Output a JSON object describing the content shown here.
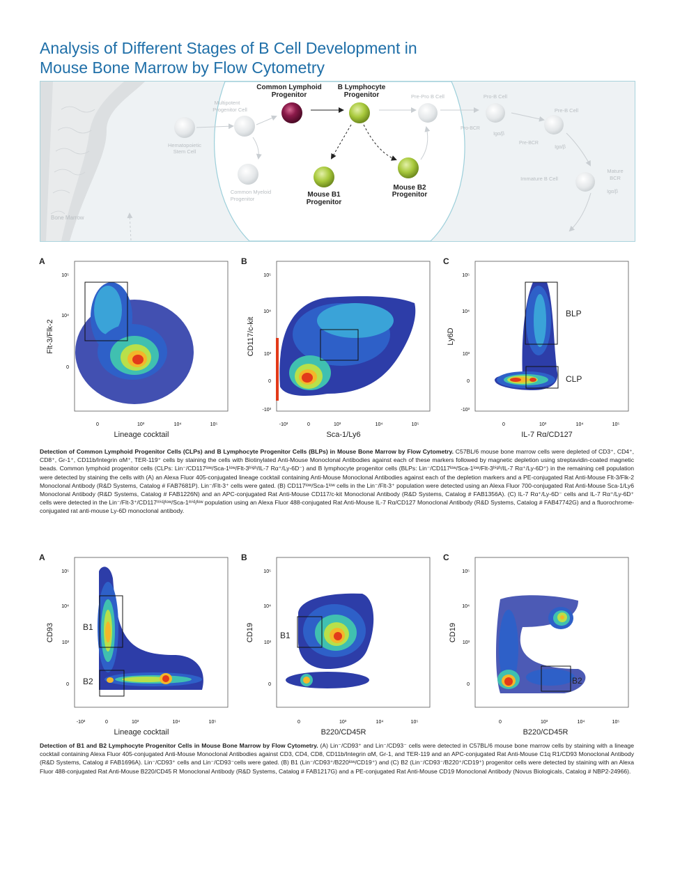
{
  "title": {
    "line1": "Analysis of Different Stages of B Cell Development in",
    "line2": "Mouse Bone Marrow by Flow Cytometry"
  },
  "diagram": {
    "bone_marrow": "Bone Marrow",
    "hsc": [
      "Hematopoietic",
      "Stem Cell"
    ],
    "mpp": [
      "Multipotent",
      "Progenitor Cell"
    ],
    "cmp": [
      "Common Myeloid",
      "Progenitor"
    ],
    "clp": [
      "Common Lymphoid",
      "Progenitor"
    ],
    "blp": [
      "B Lymphocyte",
      "Progenitor"
    ],
    "b1": [
      "Mouse B1",
      "Progenitor"
    ],
    "b2": [
      "Mouse B2",
      "Progenitor"
    ],
    "prepro": "Pre-Pro B Cell",
    "prob": "Pro-B Cell",
    "probcr": "Pro-BCR",
    "igab": "Igα/β",
    "preb": "Pre-B Cell",
    "prebcr": "Pre-BCR",
    "igab2": "Igα/β",
    "immature": "Immature B Cell",
    "mature": [
      "Mature",
      "BCR"
    ],
    "igab3": "Igα/β",
    "colors": {
      "clp": "#8b1a4a",
      "progenitor": "#a8c93c",
      "faded": "#e2e6e8"
    }
  },
  "panels_top": {
    "A": {
      "letter": "A",
      "xlabel": "Lineage cocktail",
      "ylabel": "Flt-3/Flk-2",
      "xticks": [
        "0",
        "10³",
        "10⁴",
        "10⁵"
      ],
      "yticks": [
        "10⁵",
        "10⁴",
        "0"
      ]
    },
    "B": {
      "letter": "B",
      "xlabel": "Sca-1/Ly6",
      "ylabel": "CD117/c-kit",
      "xticks": [
        "-10³",
        "0",
        "10³",
        "10⁴",
        "10⁵"
      ],
      "yticks": [
        "10⁵",
        "10⁴",
        "10³",
        "0",
        "-10³"
      ]
    },
    "C": {
      "letter": "C",
      "xlabel": "IL-7 Rα/CD127",
      "ylabel": "Ly6D",
      "xticks": [
        "0",
        "10³",
        "10⁴",
        "10⁵"
      ],
      "yticks": [
        "10⁵",
        "10⁴",
        "10³",
        "0",
        "-10³"
      ],
      "gates": [
        "BLP",
        "CLP"
      ]
    }
  },
  "caption_top": {
    "bold": "Detection of Common Lymphoid Progenitor Cells (CLPs) and B Lymphocyte Progenitor Cells (BLPs) in Mouse Bone Marrow by Flow Cytometry.",
    "text": " C57BL/6 mouse bone marrow cells were depleted of CD3⁺, CD4⁺, CD8⁺, Gr-1⁺, CD11b/Integrin αM⁺, TER-119⁺ cells by staining the cells with Biotinylated Anti-Mouse Monoclonal Antibodies against each of these markers followed by magnetic depletion using streptavidin-coated magnetic beads. Common lymphoid progenitor cells (CLPs: Lin⁻/CD117ˡᵒʷ/Sca-1ˡᵒʷ/Flt-3ʰⁱᵍʰ/IL-7 Rα⁺/Ly-6D⁻) and B lymphocyte progenitor cells (BLPs: Lin⁻/CD117ˡᵒʷ/Sca-1ˡᵒʷ/Flt-3ʰⁱᵍʰ/IL-7 Rα⁺/Ly-6D⁺) in the remaining cell population were detected by staining the cells with (A) an Alexa Fluor 405-conjugated lineage cocktail containing Anti-Mouse Monoclonal Antibodies against each of the depletion markers and a PE-conjugated Rat Anti-Mouse Flt-3/Flk-2 Monoclonal Antibody (R&D Systems, Catalog # FAB7681P). Lin⁻/Flt-3⁺ cells were gated. (B) CD117ˡᵒʷ/Sca-1ˡᵒʷ cells in the Lin⁻/Flt-3⁺ population were detected using an Alexa Fluor 700-conjugated Rat Anti-Mouse Sca-1/Ly6 Monoclonal Antibody (R&D Systems, Catalog # FAB1226N) and an APC-conjugated Rat Anti-Mouse CD117/c-kit Monoclonal Antibody (R&D Systems, Catalog # FAB1356A). (C) IL-7 Rα⁺/Ly-6D⁻ cells and IL-7 Rα⁺/Ly-6D⁺ cells were detected in the Lin⁻/Flt-3⁺/CD117ᵐⁱᵈ/ˡᵒʷ/Sca-1ᵐⁱᵈ/ˡᵒʷ population using an Alexa Fluor 488-conjugated Rat Anti-Mouse IL-7 Rα/CD127 Monoclonal Antibody (R&D Systems, Catalog # FAB47742G) and a fluorochrome-conjugated rat anti-mouse Ly-6D monoclonal antibody."
  },
  "panels_bottom": {
    "A": {
      "letter": "A",
      "xlabel": "Lineage cocktail",
      "ylabel": "CD93",
      "xticks": [
        "-10³",
        "0",
        "10³",
        "10⁴",
        "10⁵"
      ],
      "yticks": [
        "10⁵",
        "10⁴",
        "10³",
        "0"
      ],
      "gates": [
        "B1",
        "B2"
      ]
    },
    "B": {
      "letter": "B",
      "xlabel": "B220/CD45R",
      "ylabel": "CD19",
      "xticks": [
        "0",
        "10³",
        "10⁴",
        "10⁵"
      ],
      "yticks": [
        "10⁵",
        "10⁴",
        "10³",
        "0"
      ],
      "gates": [
        "B1"
      ]
    },
    "C": {
      "letter": "C",
      "xlabel": "B220/CD45R",
      "ylabel": "CD19",
      "xticks": [
        "0",
        "10³",
        "10⁴",
        "10⁵"
      ],
      "yticks": [
        "10⁵",
        "10⁴",
        "10³",
        "0"
      ],
      "gates": [
        "B2"
      ]
    }
  },
  "caption_bottom": {
    "bold": "Detection of B1 and B2 Lymphocyte Progenitor Cells in Mouse Bone Marrow by Flow Cytometry.",
    "text": " (A) Lin⁻/CD93⁺ and Lin⁻/CD93⁻ cells were detected in C57BL/6 mouse bone marrow cells by staining with a lineage cocktail containing Alexa Fluor 405-conjugated Anti-Mouse Monoclonal Antibodies against CD3, CD4, CD8, CD11b/Integrin αM, Gr-1, and TER-119 and an APC-conjugated Rat Anti-Mouse C1q R1/CD93 Monoclonal Antibody (R&D Systems, Catalog # FAB1696A). Lin⁻/CD93⁺ cells and Lin⁻/CD93⁻cells were gated. (B) B1 (Lin⁻/CD93⁺/B220ˡᵒʷ/CD19⁺) and (C) B2 (Lin⁻/CD93⁻/B220⁺/CD19⁺) progenitor cells were detected by staining with an Alexa Fluor 488-conjugated Rat Anti-Mouse B220/CD45 R Monoclonal Antibody (R&D Systems, Catalog # FAB1217G) and a PE-conjugated Rat Anti-Mouse CD19 Monoclonal Antibody (Novus Biologicals, Catalog # NBP2-24966)."
  }
}
